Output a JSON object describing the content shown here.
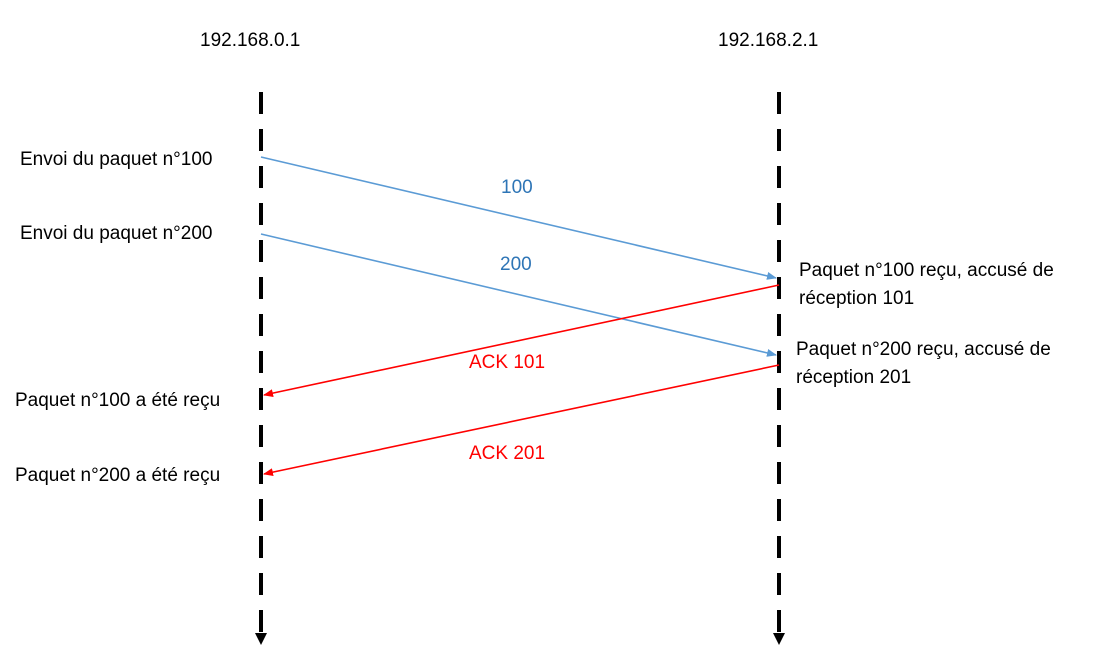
{
  "hosts": {
    "left": "192.168.0.1",
    "right": "192.168.2.1"
  },
  "events": {
    "send_100": "Envoi du paquet n°100",
    "send_200": "Envoi du paquet n°200",
    "recv_100": "Paquet n°100 reçu, accusé de réception 101",
    "recv_100_line1": "Paquet n°100 reçu, accusé de",
    "recv_100_line2": "réception 101",
    "recv_200_line1": "Paquet n°200 reçu, accusé de",
    "recv_200_line2": "réception 201",
    "ack_100": "Paquet n°100 a été reçu",
    "ack_200": "Paquet n°200 a été reçu"
  },
  "messages": {
    "pkt_100": "100",
    "pkt_200": "200",
    "ack_101": "ACK 101",
    "ack_201": "ACK 201"
  },
  "colors": {
    "packet": "#5B9BD5",
    "packet_label": "#2E75B6",
    "ack": "#FF0000",
    "timeline": "#000000"
  }
}
